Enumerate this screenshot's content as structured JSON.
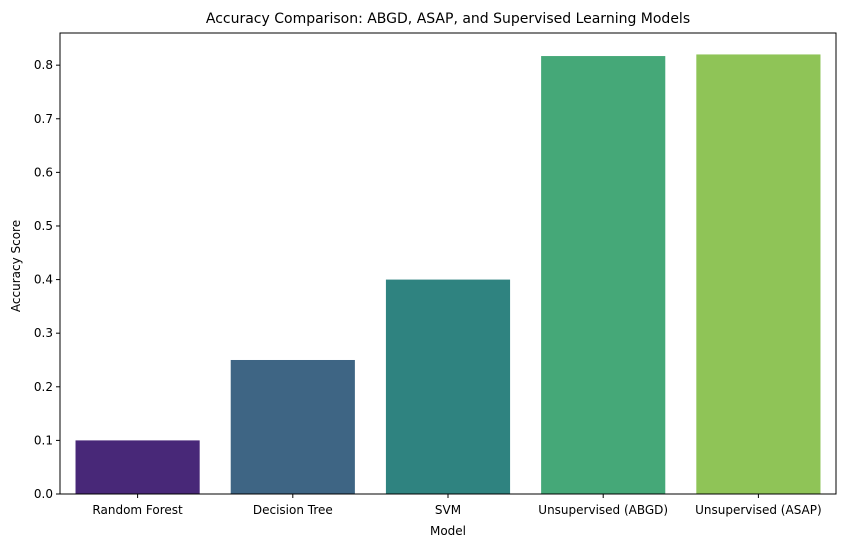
{
  "chart_data": {
    "type": "bar",
    "title": "Accuracy Comparison: ABGD, ASAP, and Supervised Learning Models",
    "xlabel": "Model",
    "ylabel": "Accuracy Score",
    "categories": [
      "Random Forest",
      "Decision Tree",
      "SVM",
      "Unsupervised (ABGD)",
      "Unsupervised (ASAP)"
    ],
    "values": [
      0.1,
      0.25,
      0.4,
      0.817,
      0.82
    ],
    "colors": [
      "#482878",
      "#3e6584",
      "#2f8380",
      "#45a878",
      "#8fc457"
    ],
    "ylim": [
      0,
      0.86
    ],
    "yticks": [
      "0.0",
      "0.1",
      "0.2",
      "0.3",
      "0.4",
      "0.5",
      "0.6",
      "0.7",
      "0.8"
    ],
    "grid": false,
    "legend": "none"
  }
}
